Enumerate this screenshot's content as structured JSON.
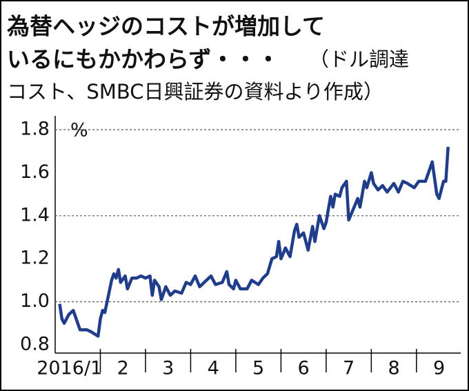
{
  "chart_data": {
    "type": "line",
    "title": "為替ヘッジのコストが増加して",
    "title_line2": "いるにもかかわらず・・・",
    "subtitle_part1": "（ドル調達",
    "subtitle_part2": "コスト、SMBC日興証券の資料より作成）",
    "y_unit": "%",
    "x": [
      1.1,
      1.15,
      1.2,
      1.3,
      1.4,
      1.5,
      1.55,
      1.7,
      1.8,
      1.95,
      2.0,
      2.05,
      2.1,
      2.15,
      2.25,
      2.3,
      2.35,
      2.4,
      2.45,
      2.55,
      2.6,
      2.7,
      2.8,
      2.9,
      3.0,
      3.1,
      3.15,
      3.2,
      3.3,
      3.35,
      3.45,
      3.55,
      3.65,
      3.8,
      3.9,
      4.0,
      4.1,
      4.2,
      4.3,
      4.45,
      4.55,
      4.7,
      4.8,
      4.85,
      4.95,
      5.0,
      5.1,
      5.25,
      5.35,
      5.5,
      5.6,
      5.7,
      5.8,
      5.9,
      5.95,
      6.0,
      6.1,
      6.2,
      6.3,
      6.35,
      6.4,
      6.5,
      6.6,
      6.7,
      6.75,
      6.85,
      6.95,
      7.0,
      7.05,
      7.1,
      7.15,
      7.2,
      7.3,
      7.35,
      7.45,
      7.5,
      7.6,
      7.7,
      7.75,
      7.85,
      7.9,
      8.0,
      8.05,
      8.15,
      8.25,
      8.35,
      8.5,
      8.6,
      8.7,
      8.8,
      8.95,
      9.05,
      9.2,
      9.35,
      9.45,
      9.5,
      9.6,
      9.65,
      9.7
    ],
    "series": [
      {
        "color": "#1f3d8a",
        "values": [
          0.99,
          0.92,
          0.9,
          0.94,
          0.96,
          0.9,
          0.87,
          0.87,
          0.86,
          0.84,
          0.92,
          0.96,
          0.95,
          1.0,
          1.1,
          1.13,
          1.11,
          1.15,
          1.09,
          1.12,
          1.06,
          1.11,
          1.11,
          1.12,
          1.11,
          1.12,
          1.03,
          1.1,
          1.07,
          1.01,
          1.07,
          1.03,
          1.05,
          1.04,
          1.09,
          1.08,
          1.12,
          1.07,
          1.09,
          1.12,
          1.08,
          1.09,
          1.14,
          1.08,
          1.06,
          1.1,
          1.06,
          1.06,
          1.1,
          1.08,
          1.11,
          1.13,
          1.2,
          1.21,
          1.28,
          1.2,
          1.25,
          1.21,
          1.33,
          1.36,
          1.3,
          1.32,
          1.24,
          1.35,
          1.28,
          1.4,
          1.34,
          1.37,
          1.43,
          1.49,
          1.44,
          1.5,
          1.49,
          1.53,
          1.56,
          1.38,
          1.43,
          1.48,
          1.44,
          1.56,
          1.53,
          1.6,
          1.55,
          1.52,
          1.54,
          1.51,
          1.55,
          1.51,
          1.56,
          1.55,
          1.53,
          1.56,
          1.56,
          1.65,
          1.5,
          1.48,
          1.56,
          1.56,
          1.72
        ]
      }
    ],
    "xlim": [
      1,
      9.98
    ],
    "xticks": [
      {
        "value": 1,
        "label": "2016/1"
      },
      2,
      3,
      4,
      5,
      6,
      7,
      8,
      9
    ],
    "ylim": [
      0.8,
      1.8
    ],
    "yticks": [
      0.8,
      {
        "value": 1.0,
        "label": "1.0"
      },
      1.2,
      1.4,
      1.6,
      1.8
    ],
    "grid": true
  }
}
